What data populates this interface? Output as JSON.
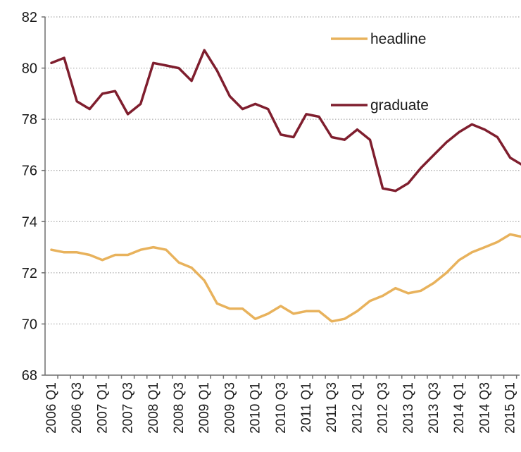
{
  "chart_data": {
    "type": "line",
    "title": "",
    "xlabel": "",
    "ylabel": "",
    "ylim": [
      68,
      82
    ],
    "yticks": [
      "68",
      "70",
      "72",
      "74",
      "76",
      "78",
      "80",
      "82"
    ],
    "grid": "horizontal dotted",
    "legend": "inline, upper right",
    "x": [
      "2006 Q1",
      "2006 Q2",
      "2006 Q3",
      "2006 Q4",
      "2007 Q1",
      "2007 Q2",
      "2007 Q3",
      "2007 Q4",
      "2008 Q1",
      "2008 Q2",
      "2008 Q3",
      "2008 Q4",
      "2009 Q1",
      "2009 Q2",
      "2009 Q3",
      "2009 Q4",
      "2010 Q1",
      "2010 Q2",
      "2010 Q3",
      "2010 Q4",
      "2011 Q1",
      "2011 Q2",
      "2011 Q3",
      "2011 Q4",
      "2012 Q1",
      "2012 Q2",
      "2012 Q3",
      "2012 Q4",
      "2013 Q1",
      "2013 Q2",
      "2013 Q3",
      "2013 Q4",
      "2014 Q1",
      "2014 Q2",
      "2014 Q3",
      "2014 Q4",
      "2015 Q1",
      "2015 Q2"
    ],
    "xtick_labels": [
      "2006 Q1",
      "2006 Q3",
      "2007 Q1",
      "2007 Q3",
      "2008 Q1",
      "2008 Q3",
      "2009 Q1",
      "2009 Q3",
      "2010 Q1",
      "2010 Q3",
      "2011 Q1",
      "2011 Q3",
      "2012 Q1",
      "2012 Q3",
      "2013 Q1",
      "2013 Q3",
      "2014 Q1",
      "2014 Q3",
      "2015 Q1"
    ],
    "series": [
      {
        "name": "headline",
        "color": "#E8B25C",
        "values": [
          72.9,
          72.8,
          72.8,
          72.7,
          72.5,
          72.7,
          72.7,
          72.9,
          73.0,
          72.9,
          72.4,
          72.2,
          71.7,
          70.8,
          70.6,
          70.6,
          70.2,
          70.4,
          70.7,
          70.4,
          70.5,
          70.5,
          70.1,
          70.2,
          70.5,
          70.9,
          71.1,
          71.4,
          71.2,
          71.3,
          71.6,
          72.0,
          72.5,
          72.8,
          73.0,
          73.2,
          73.5,
          73.4
        ]
      },
      {
        "name": "graduate",
        "color": "#7F1E2E",
        "values": [
          80.2,
          80.4,
          78.7,
          78.4,
          79.0,
          79.1,
          78.2,
          78.6,
          80.2,
          80.1,
          80.0,
          79.5,
          80.7,
          79.9,
          78.9,
          78.4,
          78.6,
          78.4,
          77.4,
          77.3,
          78.2,
          78.1,
          77.3,
          77.2,
          77.6,
          77.2,
          75.3,
          75.2,
          75.5,
          76.1,
          76.6,
          77.1,
          77.5,
          77.8,
          77.6,
          77.3,
          76.5,
          76.2
        ]
      }
    ]
  }
}
